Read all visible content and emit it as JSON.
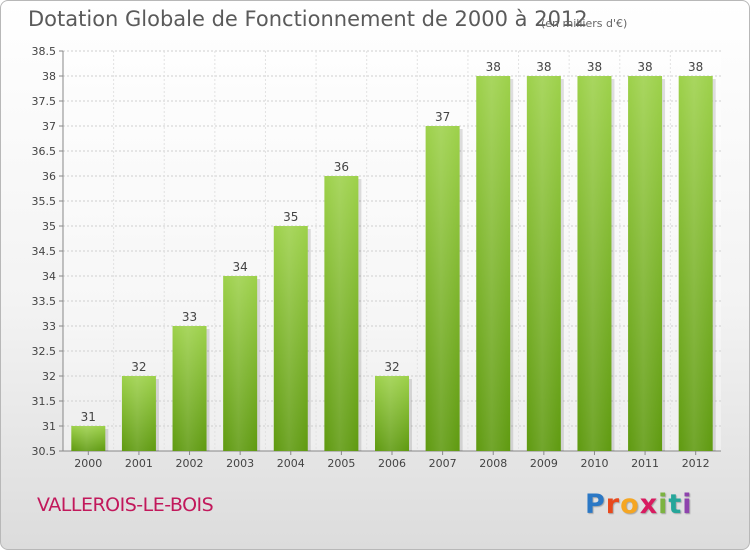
{
  "header": {
    "title": "Dotation Globale de Fonctionnement de 2000 à 2012",
    "subtitle": "(en milliers d'€)"
  },
  "footer": {
    "commune": "VALLEROIS-LE-BOIS",
    "logo_letters": [
      "P",
      "r",
      "o",
      "x",
      "i",
      "t",
      "i"
    ],
    "logo_colors": [
      "#2b78c5",
      "#e8491d",
      "#f5a623",
      "#d81b60",
      "#7cb342",
      "#26a69a",
      "#8e44ad"
    ]
  },
  "chart_data": {
    "type": "bar",
    "categories": [
      "2000",
      "2001",
      "2002",
      "2003",
      "2004",
      "2005",
      "2006",
      "2007",
      "2008",
      "2009",
      "2010",
      "2011",
      "2012"
    ],
    "values": [
      31,
      32,
      33,
      34,
      35,
      36,
      32,
      37,
      38,
      38,
      38,
      38,
      38
    ],
    "ylim": [
      30.5,
      38.5
    ],
    "yticks": [
      "30.5",
      "31",
      "31.5",
      "32",
      "32.5",
      "33",
      "33.5",
      "34",
      "34.5",
      "35",
      "35.5",
      "36",
      "36.5",
      "37",
      "37.5",
      "38",
      "38.5"
    ],
    "grid": true,
    "bar_color": "#8cc63f",
    "xlabel": "",
    "ylabel": ""
  }
}
